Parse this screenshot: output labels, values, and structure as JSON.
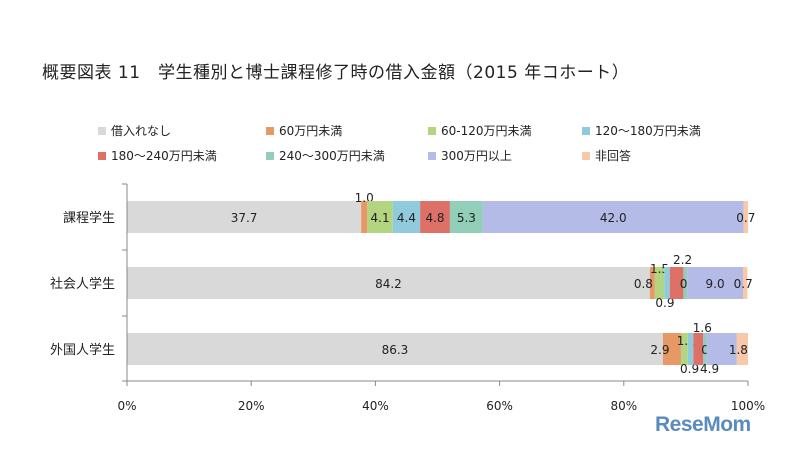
{
  "chart_data": {
    "type": "bar",
    "orientation": "horizontal",
    "stacked": true,
    "title": "概要図表 11　学生種別と博士課程修了時の借入金額（2015 年コホート）",
    "categories": [
      "課程学生",
      "社会人学生",
      "外国人学生"
    ],
    "x_ticks": [
      "0%",
      "20%",
      "40%",
      "60%",
      "80%",
      "100%"
    ],
    "xlim": [
      0,
      100
    ],
    "legend_position": "top",
    "grid": false,
    "series": [
      {
        "name": "借入れなし",
        "color": "#d9d9d9",
        "values": [
          37.7,
          84.2,
          86.3
        ]
      },
      {
        "name": "60万円未満",
        "color": "#e69966",
        "values": [
          1.0,
          0.8,
          2.9
        ]
      },
      {
        "name": "60-120万円未満",
        "color": "#b3d580",
        "values": [
          4.1,
          1.5,
          1.1
        ]
      },
      {
        "name": "120～180万円未満",
        "color": "#8fcbdc",
        "values": [
          4.4,
          0.9,
          0.9
        ]
      },
      {
        "name": "180～240万円未満",
        "color": "#dd7168",
        "values": [
          4.8,
          2.2,
          1.6
        ]
      },
      {
        "name": "240～300万円未満",
        "color": "#91cfb8",
        "values": [
          5.3,
          0.6,
          0.5
        ]
      },
      {
        "name": "300万円以上",
        "color": "#b3bbe6",
        "values": [
          42.0,
          9.0,
          4.9
        ]
      },
      {
        "name": "非回答",
        "color": "#f8c8a8",
        "values": [
          0.7,
          0.7,
          1.8
        ]
      }
    ],
    "data_labels": [
      [
        "37.7",
        "1.0",
        "4.1",
        "4.4",
        "4.8",
        "5.3",
        "42.0",
        "0.7"
      ],
      [
        "84.2",
        "0.8",
        "1.5",
        "0.9",
        "2.2",
        "0.6",
        "9.0",
        "0.7"
      ],
      [
        "86.3",
        "2.9",
        "1.1",
        "0.9",
        "1.6",
        "0.5",
        "4.9",
        "1.8"
      ]
    ]
  },
  "watermark": "ReseMom"
}
